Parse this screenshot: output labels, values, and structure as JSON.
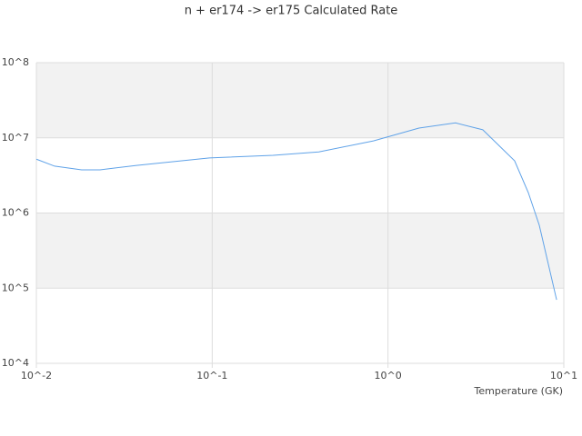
{
  "chart_data": {
    "type": "line",
    "title": "n + er174 -> er175 Calculated Rate",
    "x_label": "Temperature (GK)",
    "x": [
      0.01,
      0.0127,
      0.0181,
      0.023,
      0.0371,
      0.0964,
      0.222,
      0.404,
      0.826,
      1.5,
      2.42,
      3.46,
      5.25,
      6.28,
      7.25,
      9.1
    ],
    "series": [
      {
        "name": "rate",
        "color": "#5fa2e8",
        "values": [
          5200000,
          4200000,
          3750000,
          3750000,
          4300000,
          5400000,
          5850000,
          6500000,
          9100000,
          13500000,
          15800000,
          12800000,
          4950000,
          1870000,
          690000,
          70000
        ]
      }
    ],
    "xlog": true,
    "ylog": true,
    "grid": true,
    "xlim": [
      0.01,
      10
    ],
    "ylim": [
      10000,
      100000000
    ],
    "xticks": [
      {
        "value": 0.01,
        "label": "10^-2"
      },
      {
        "value": 0.1,
        "label": "10^-1"
      },
      {
        "value": 1,
        "label": "10^0"
      },
      {
        "value": 10,
        "label": "10^1"
      }
    ],
    "yticks": [
      {
        "value": 10000,
        "label": "10^4"
      },
      {
        "value": 100000,
        "label": "10^5"
      },
      {
        "value": 1000000,
        "label": "10^6"
      },
      {
        "value": 10000000,
        "label": "10^7"
      },
      {
        "value": 100000000,
        "label": "10^8"
      }
    ]
  }
}
